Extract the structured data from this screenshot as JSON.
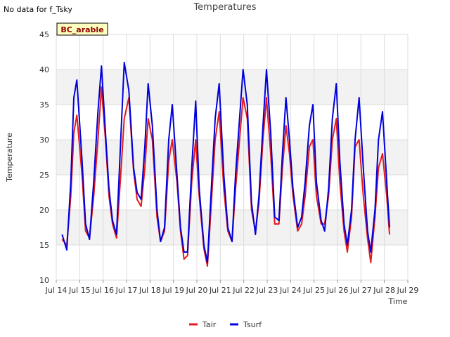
{
  "note": "No data for f_Tsky",
  "badge": "BC_arable",
  "colors": {
    "tair": "#e41a1c",
    "tsurf": "#0000dd",
    "band": "#f2f2f2",
    "grid": "#dcdcdc",
    "badge_bg": "#ffffc0",
    "badge_text": "#8b0000"
  },
  "chart_data": {
    "type": "line",
    "title": "Temperatures",
    "xlabel": "Time",
    "ylabel": "Temperature",
    "xlim": [
      14,
      29
    ],
    "ylim": [
      10,
      45
    ],
    "x_ticks": [
      14,
      15,
      16,
      17,
      18,
      19,
      20,
      21,
      22,
      23,
      24,
      25,
      26,
      27,
      28,
      29
    ],
    "x_tick_labels": [
      "Jul 14",
      "Jul 15",
      "Jul 16",
      "Jul 17",
      "Jul 18",
      "Jul 19",
      "Jul 20",
      "Jul 21",
      "Jul 22",
      "Jul 23",
      "Jul 24",
      "Jul 25",
      "Jul 26",
      "Jul 27",
      "Jul 28",
      "Jul 29"
    ],
    "y_ticks": [
      10,
      15,
      20,
      25,
      30,
      35,
      40,
      45
    ],
    "y_tick_labels": [
      "10",
      "15",
      "20",
      "25",
      "30",
      "35",
      "40",
      "45"
    ],
    "legend": [
      "Tair",
      "Tsurf"
    ],
    "legend_position": "bottom-center",
    "series": [
      {
        "name": "Tair",
        "x": [
          14.25,
          14.45,
          14.62,
          14.75,
          14.88,
          15.1,
          15.25,
          15.42,
          15.6,
          15.78,
          15.93,
          16.1,
          16.25,
          16.4,
          16.57,
          16.75,
          16.9,
          17.1,
          17.3,
          17.45,
          17.62,
          17.78,
          17.92,
          18.1,
          18.3,
          18.45,
          18.62,
          18.8,
          18.95,
          19.15,
          19.3,
          19.45,
          19.6,
          19.78,
          19.95,
          20.1,
          20.3,
          20.45,
          20.6,
          20.78,
          20.95,
          21.15,
          21.32,
          21.5,
          21.65,
          21.82,
          21.97,
          22.15,
          22.33,
          22.5,
          22.65,
          22.82,
          22.97,
          23.15,
          23.32,
          23.5,
          23.65,
          23.8,
          23.95,
          24.1,
          24.3,
          24.47,
          24.62,
          24.8,
          24.95,
          25.1,
          25.3,
          25.45,
          25.62,
          25.78,
          25.95,
          26.1,
          26.28,
          26.42,
          26.6,
          26.75,
          26.92,
          27.1,
          27.28,
          27.42,
          27.6,
          27.75,
          27.92,
          28.1,
          28.22
        ],
        "y": [
          15.8,
          15.0,
          22.0,
          31.0,
          33.5,
          25.0,
          17.0,
          16.0,
          22.0,
          30.0,
          37.5,
          30.0,
          22.0,
          18.0,
          16.0,
          25.0,
          33.0,
          36.0,
          25.5,
          21.5,
          20.5,
          26.0,
          33.0,
          30.0,
          19.0,
          15.5,
          17.0,
          27.0,
          30.0,
          24.0,
          17.0,
          13.0,
          13.5,
          24.0,
          30.0,
          22.0,
          14.5,
          12.0,
          20.0,
          30.0,
          34.0,
          23.0,
          17.0,
          15.5,
          23.0,
          30.0,
          36.0,
          33.0,
          20.0,
          17.0,
          21.0,
          30.0,
          36.0,
          28.0,
          18.0,
          18.0,
          26.0,
          32.0,
          28.0,
          22.0,
          17.0,
          18.0,
          22.0,
          29.0,
          30.0,
          22.0,
          18.0,
          18.0,
          22.0,
          30.0,
          33.0,
          24.0,
          17.0,
          14.0,
          19.0,
          29.0,
          30.0,
          22.0,
          16.0,
          12.5,
          19.0,
          26.0,
          28.0,
          22.0,
          16.5
        ]
      },
      {
        "name": "Tsurf",
        "x": [
          14.25,
          14.45,
          14.62,
          14.75,
          14.88,
          15.1,
          15.25,
          15.42,
          15.6,
          15.78,
          15.93,
          16.1,
          16.25,
          16.4,
          16.57,
          16.75,
          16.9,
          17.1,
          17.3,
          17.45,
          17.62,
          17.78,
          17.92,
          18.1,
          18.3,
          18.45,
          18.62,
          18.8,
          18.95,
          19.15,
          19.3,
          19.45,
          19.6,
          19.78,
          19.95,
          20.1,
          20.3,
          20.45,
          20.6,
          20.78,
          20.95,
          21.15,
          21.32,
          21.5,
          21.65,
          21.82,
          21.97,
          22.15,
          22.33,
          22.5,
          22.65,
          22.82,
          22.97,
          23.15,
          23.32,
          23.5,
          23.65,
          23.8,
          23.95,
          24.1,
          24.3,
          24.47,
          24.62,
          24.8,
          24.95,
          25.1,
          25.3,
          25.45,
          25.62,
          25.78,
          25.95,
          26.1,
          26.28,
          26.42,
          26.6,
          26.75,
          26.92,
          27.1,
          27.28,
          27.42,
          27.6,
          27.75,
          27.92,
          28.1,
          28.22
        ],
        "y": [
          16.5,
          14.3,
          24.0,
          36.0,
          38.5,
          27.0,
          18.0,
          15.8,
          24.0,
          34.0,
          40.5,
          31.0,
          23.0,
          18.5,
          16.5,
          30.0,
          41.0,
          37.0,
          26.0,
          22.5,
          21.5,
          29.0,
          38.0,
          32.0,
          20.0,
          15.5,
          17.5,
          30.0,
          35.0,
          25.0,
          17.5,
          14.0,
          14.0,
          26.0,
          35.5,
          23.0,
          15.0,
          12.5,
          22.0,
          33.0,
          38.0,
          25.0,
          17.5,
          15.5,
          25.0,
          33.0,
          40.0,
          35.0,
          21.0,
          16.5,
          22.0,
          32.0,
          40.0,
          31.0,
          19.0,
          18.5,
          28.0,
          36.0,
          30.0,
          23.0,
          17.5,
          19.0,
          24.0,
          32.0,
          35.0,
          24.0,
          18.5,
          17.0,
          23.0,
          33.0,
          38.0,
          27.0,
          18.0,
          15.0,
          20.0,
          30.0,
          36.0,
          26.0,
          17.0,
          14.0,
          20.0,
          30.0,
          34.0,
          24.0,
          17.5
        ]
      }
    ]
  }
}
